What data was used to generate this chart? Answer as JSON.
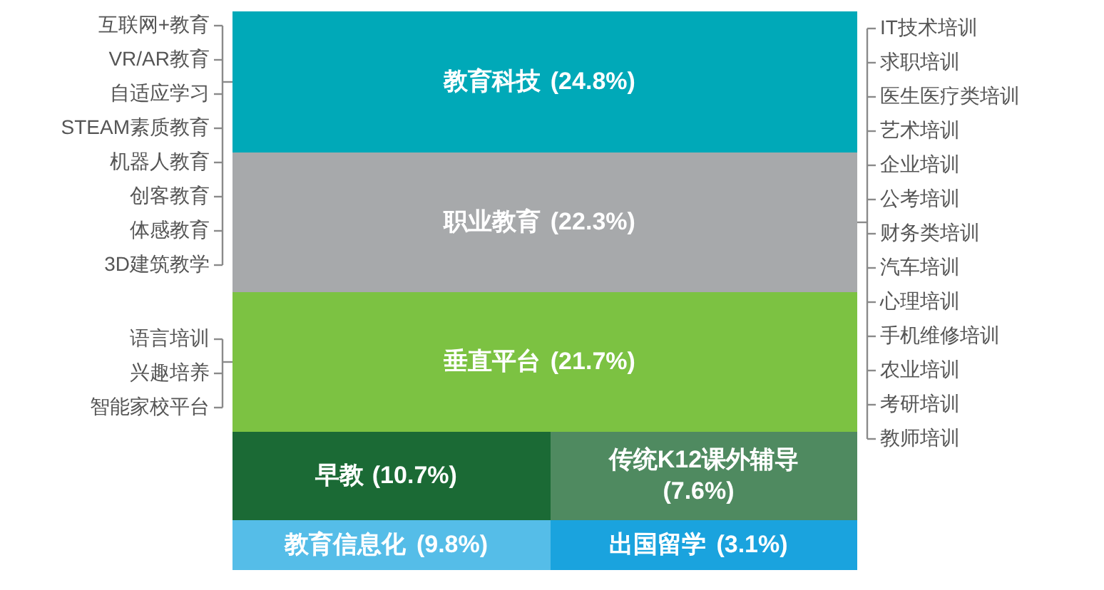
{
  "chart_data": {
    "type": "other",
    "categories": [
      "教育科技",
      "职业教育",
      "垂直平台",
      "早教",
      "传统K12课外辅导",
      "教育信息化",
      "出国留学"
    ],
    "values": [
      24.8,
      22.3,
      21.7,
      10.7,
      7.6,
      9.8,
      3.1
    ],
    "value_labels": [
      "(24.8%)",
      "(22.3%)",
      "(21.7%)",
      "(10.7%)",
      "(7.6%)",
      "(9.8%)",
      "(3.1%)"
    ],
    "colors": [
      "#00a9b8",
      "#a7a9ab",
      "#7cc242",
      "#1b6a35",
      "#4f8a60",
      "#55bde8",
      "#1aa3de"
    ],
    "annotations": [
      {
        "text": "互联网+教育",
        "x": "教育科技"
      },
      {
        "text": "VR/AR教育",
        "x": "教育科技"
      },
      {
        "text": "自适应学习",
        "x": "教育科技"
      },
      {
        "text": "STEAM素质教育",
        "x": "教育科技"
      },
      {
        "text": "机器人教育",
        "x": "教育科技"
      },
      {
        "text": "创客教育",
        "x": "教育科技"
      },
      {
        "text": "体感教育",
        "x": "教育科技"
      },
      {
        "text": "3D建筑教学",
        "x": "教育科技"
      },
      {
        "text": "IT技术培训",
        "x": "职业教育"
      },
      {
        "text": "求职培训",
        "x": "职业教育"
      },
      {
        "text": "医生医疗类培训",
        "x": "职业教育"
      },
      {
        "text": "艺术培训",
        "x": "职业教育"
      },
      {
        "text": "企业培训",
        "x": "职业教育"
      },
      {
        "text": "公考培训",
        "x": "职业教育"
      },
      {
        "text": "财务类培训",
        "x": "职业教育"
      },
      {
        "text": "汽车培训",
        "x": "职业教育"
      },
      {
        "text": "心理培训",
        "x": "职业教育"
      },
      {
        "text": "手机维修培训",
        "x": "职业教育"
      },
      {
        "text": "农业培训",
        "x": "职业教育"
      },
      {
        "text": "考研培训",
        "x": "职业教育"
      },
      {
        "text": "教师培训",
        "x": "职业教育"
      },
      {
        "text": "语言培训",
        "x": "垂直平台"
      },
      {
        "text": "兴趣培养",
        "x": "垂直平台"
      },
      {
        "text": "智能家校平台",
        "x": "垂直平台"
      }
    ]
  }
}
